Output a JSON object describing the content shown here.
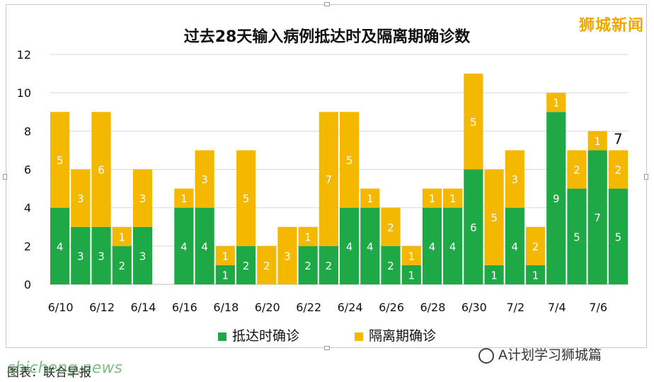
{
  "header": {
    "title": "过去28天输入病例抵达时及隔离期确诊数",
    "watermark": "狮城新闻"
  },
  "legend": {
    "arrival_label": "抵达时确诊",
    "quarantine_label": "隔离期确诊"
  },
  "footer": {
    "wechat_label": "A计划学习狮城篇",
    "note": "图表：联合早报",
    "site": "shicheng.news"
  },
  "colors": {
    "arrival": "#1fa846",
    "quarantine": "#f5b800",
    "grid": "#d9d9d9"
  },
  "chart_data": {
    "type": "bar",
    "stacked": true,
    "title": "过去28天输入病例抵达时及隔离期确诊数",
    "categories": [
      "6/10",
      "6/11",
      "6/12",
      "6/13",
      "6/14",
      "6/15",
      "6/16",
      "6/17",
      "6/18",
      "6/19",
      "6/20",
      "6/21",
      "6/22",
      "6/23",
      "6/24",
      "6/25",
      "6/26",
      "6/27",
      "6/28",
      "6/29",
      "6/30",
      "7/1",
      "7/2",
      "7/3",
      "7/4",
      "7/5",
      "7/6",
      "7/7"
    ],
    "tick_labels": [
      "6/10",
      "",
      "6/12",
      "",
      "6/14",
      "",
      "6/16",
      "",
      "6/18",
      "",
      "6/20",
      "",
      "6/22",
      "",
      "6/24",
      "",
      "6/26",
      "",
      "6/28",
      "",
      "6/30",
      "",
      "7/2",
      "",
      "7/4",
      "",
      "7/6",
      ""
    ],
    "series": [
      {
        "name": "抵达时确诊",
        "values": [
          4,
          3,
          3,
          2,
          3,
          0,
          4,
          4,
          1,
          2,
          0,
          0,
          2,
          2,
          4,
          4,
          2,
          1,
          4,
          4,
          6,
          1,
          4,
          1,
          9,
          5,
          7,
          5
        ]
      },
      {
        "name": "隔离期确诊",
        "values": [
          5,
          3,
          6,
          1,
          3,
          0,
          1,
          3,
          1,
          5,
          2,
          3,
          1,
          7,
          5,
          1,
          2,
          1,
          1,
          1,
          5,
          5,
          3,
          2,
          1,
          2,
          1,
          2
        ]
      }
    ],
    "ylim": [
      0,
      12
    ],
    "yticks": [
      0,
      2,
      4,
      6,
      8,
      10,
      12
    ],
    "annotation": {
      "category": "7/7",
      "text": "7"
    },
    "grid": true,
    "legend_position": "bottom"
  }
}
